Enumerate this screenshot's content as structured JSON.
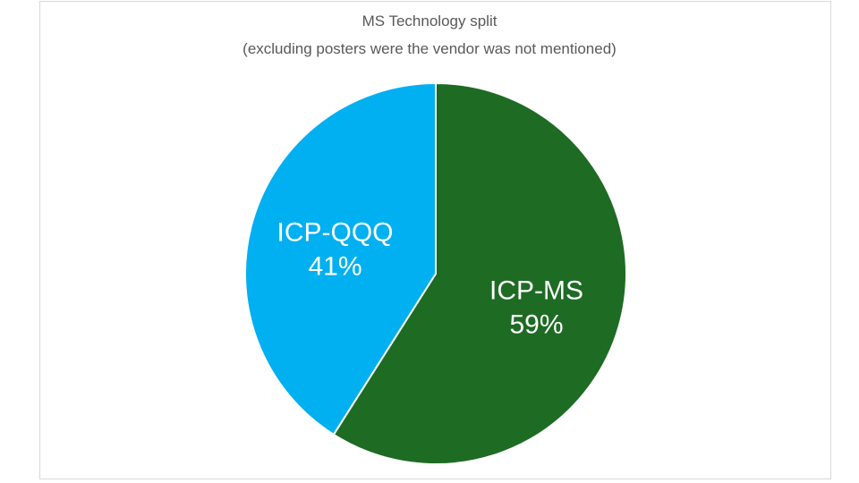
{
  "chart_data": {
    "type": "pie",
    "title": "MS Technology split",
    "subtitle": "(excluding posters were the vendor was not mentioned)",
    "slices": [
      {
        "label": "ICP-MS",
        "value": 59,
        "value_label": "59%",
        "color": "#1e6b24"
      },
      {
        "label": "ICP-QQQ",
        "value": 41,
        "value_label": "41%",
        "color": "#00b0f0"
      }
    ],
    "start_angle": "top",
    "direction": "clockwise",
    "legend": "none"
  }
}
